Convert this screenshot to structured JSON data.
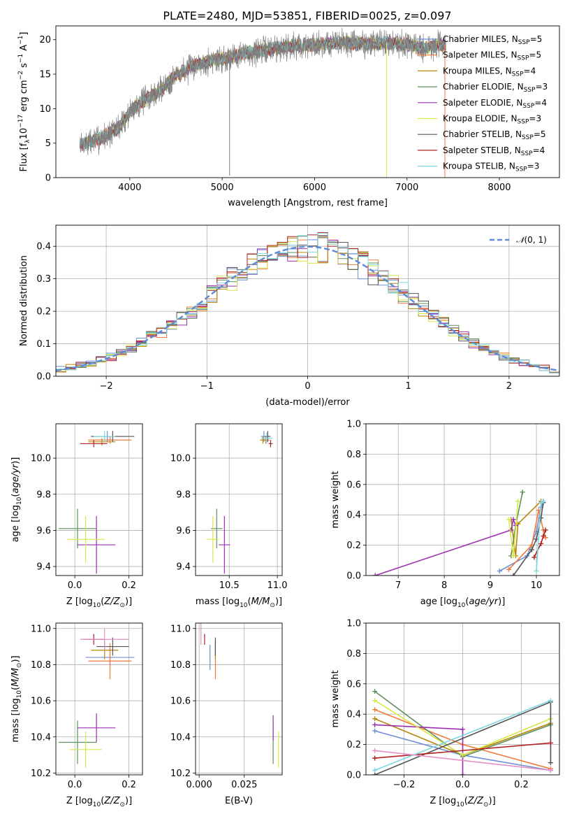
{
  "figure": {
    "title": "PLATE=2480, MJD=53851, FIBERID=0025, z=0.097"
  },
  "legend_models": [
    {
      "text": "Chabrier MILES, N$_{SSP}$=5",
      "prefix": "Chabrier MILES, N",
      "sub": "SSP",
      "suffix": "=5",
      "color": "#6f8fd6"
    },
    {
      "text": "Salpeter MILES, N$_{SSP}$=5",
      "prefix": "Salpeter MILES, N",
      "sub": "SSP",
      "suffix": "=5",
      "color": "#f07a3a"
    },
    {
      "text": "Kroupa MILES, N$_{SSP}$=4",
      "prefix": "Kroupa MILES, N",
      "sub": "SSP",
      "suffix": "=4",
      "color": "#b8860b"
    },
    {
      "text": "Chabrier ELODIE, N$_{SSP}$=3",
      "prefix": "Chabrier ELODIE, N",
      "sub": "SSP",
      "suffix": "=3",
      "color": "#5f8f5f"
    },
    {
      "text": "Salpeter ELODIE, N$_{SSP}$=4",
      "prefix": "Salpeter ELODIE, N",
      "sub": "SSP",
      "suffix": "=4",
      "color": "#9b30b0"
    },
    {
      "text": "Kroupa ELODIE, N$_{SSP}$=3",
      "prefix": "Kroupa ELODIE, N",
      "sub": "SSP",
      "suffix": "=3",
      "color": "#d8e84a"
    },
    {
      "text": "Chabrier STELIB, N$_{SSP}$=5",
      "prefix": "Chabrier STELIB, N",
      "sub": "SSP",
      "suffix": "=5",
      "color": "#555555"
    },
    {
      "text": "Salpeter STELIB, N$_{SSP}$=4",
      "prefix": "Salpeter STELIB, N",
      "sub": "SSP",
      "suffix": "=4",
      "color": "#b22222"
    },
    {
      "text": "Kroupa STELIB, N$_{SSP}$=3",
      "prefix": "Kroupa STELIB, N",
      "sub": "SSP",
      "suffix": "=3",
      "color": "#7fd8e0"
    }
  ],
  "chart_data": [
    {
      "id": "spectrum",
      "type": "line",
      "xlabel": "wavelength [Angstrom, rest frame]",
      "ylabel": "Flux [f$_\\lambda$10$^{-17}$ erg cm$^{-2}$ s$^{-1}$ A$^{-1}$]",
      "ylabel_parts": {
        "a": "Flux [f",
        "b": "λ",
        "c": "10",
        "d": "−17",
        "e": " erg cm",
        "f": "−2",
        "g": " s",
        "h": "−1",
        "i": " A",
        "j": "−1",
        "k": "]"
      },
      "xlim": [
        3200,
        8650
      ],
      "ylim": [
        0,
        22
      ],
      "xticks": [
        4000,
        5000,
        6000,
        7000,
        8000
      ],
      "yticks": [
        0,
        5,
        10,
        15,
        20
      ],
      "grid": false,
      "legend_position": "upper right",
      "data_color": "#808080",
      "x": [
        3460,
        3500,
        3600,
        3700,
        3800,
        3900,
        4000,
        4100,
        4200,
        4300,
        4400,
        4500,
        4600,
        4700,
        4800,
        4900,
        5000,
        5100,
        5200,
        5300,
        5400,
        5500,
        5600,
        5700,
        5800,
        5900,
        6000,
        6100,
        6200,
        6300,
        6400,
        6500,
        6600,
        6700,
        6800,
        6900,
        7000,
        7100,
        7200,
        7300,
        7420
      ],
      "y_model": [
        4.8,
        4.9,
        5.3,
        5.8,
        6.5,
        7.5,
        9.5,
        10.8,
        11.5,
        12.3,
        13.6,
        14.8,
        15.5,
        16.3,
        16.7,
        17.0,
        17.2,
        17.6,
        17.9,
        18.1,
        18.3,
        18.6,
        18.8,
        19.0,
        19.1,
        19.2,
        19.3,
        19.4,
        19.5,
        19.5,
        19.5,
        19.4,
        19.4,
        19.5,
        19.5,
        19.5,
        19.3,
        19.0,
        18.7,
        19.1,
        19.3
      ],
      "features": [
        {
          "x": 5080,
          "y": 0.3
        },
        {
          "x": 6780,
          "y": 0.0
        },
        {
          "x": 7410,
          "y": 0.0
        }
      ]
    },
    {
      "id": "residual-hist",
      "type": "step-histogram",
      "xlabel": "(data-model)/error",
      "ylabel": "Normed distribution",
      "legend_label": "N(0,1)",
      "legend_position": "upper right",
      "xlim": [
        -2.5,
        2.5
      ],
      "ylim": [
        0,
        0.465
      ],
      "xticks": [
        -2,
        -1,
        0,
        1,
        2
      ],
      "yticks": [
        0.0,
        0.1,
        0.2,
        0.3,
        0.4
      ],
      "grid": true,
      "bin_width": 0.1,
      "gaussian_color": "#5b8bd9"
    },
    {
      "id": "age-vs-Z",
      "type": "errorbar",
      "xlabel": "Z [log$_{10}$(Z/Z$_\\odot$)]",
      "ylabel": "age  [log$_{10}$(age/yr)]",
      "xlim": [
        -0.07,
        0.25
      ],
      "ylim": [
        9.35,
        10.19
      ],
      "xticks": [
        0.0,
        0.2
      ],
      "yticks": [
        9.4,
        9.6,
        9.8,
        10.0
      ],
      "grid": true,
      "points": [
        {
          "x": 0.12,
          "y": 10.12,
          "xerr": 0.06,
          "yerr": 0.03,
          "color": "#6f8fd6"
        },
        {
          "x": 0.13,
          "y": 10.1,
          "xerr": 0.08,
          "yerr": 0.02,
          "color": "#f07a3a"
        },
        {
          "x": 0.1,
          "y": 10.09,
          "xerr": 0.05,
          "yerr": 0.02,
          "color": "#b8860b"
        },
        {
          "x": 0.01,
          "y": 9.61,
          "xerr": 0.07,
          "yerr": 0.11,
          "color": "#5f8f5f"
        },
        {
          "x": 0.08,
          "y": 9.52,
          "xerr": 0.07,
          "yerr": 0.16,
          "color": "#9b30b0"
        },
        {
          "x": 0.04,
          "y": 9.55,
          "xerr": 0.07,
          "yerr": 0.13,
          "color": "#d8e84a"
        },
        {
          "x": 0.14,
          "y": 10.12,
          "xerr": 0.08,
          "yerr": 0.03,
          "color": "#555555"
        },
        {
          "x": 0.07,
          "y": 10.08,
          "xerr": 0.05,
          "yerr": 0.02,
          "color": "#b22222"
        },
        {
          "x": 0.11,
          "y": 10.12,
          "xerr": 0.04,
          "yerr": 0.03,
          "color": "#7fd8e0"
        }
      ]
    },
    {
      "id": "age-vs-mass",
      "type": "errorbar",
      "xlabel": "mass [log$_{10}$(M/M$_\\odot$)]",
      "ylabel": "",
      "xlim": [
        10.15,
        11.05
      ],
      "ylim": [
        9.35,
        10.19
      ],
      "xticks": [
        10.5,
        11.0
      ],
      "yticks": [
        9.4,
        9.6,
        9.8,
        10.0
      ],
      "grid": true,
      "points": [
        {
          "x": 10.86,
          "y": 10.12,
          "xerr": 0.03,
          "yerr": 0.03,
          "color": "#6f8fd6"
        },
        {
          "x": 10.88,
          "y": 10.1,
          "xerr": 0.04,
          "yerr": 0.02,
          "color": "#f07a3a"
        },
        {
          "x": 10.85,
          "y": 10.1,
          "xerr": 0.03,
          "yerr": 0.02,
          "color": "#b8860b"
        },
        {
          "x": 10.37,
          "y": 9.61,
          "xerr": 0.06,
          "yerr": 0.11,
          "color": "#5f8f5f"
        },
        {
          "x": 10.45,
          "y": 9.52,
          "xerr": 0.06,
          "yerr": 0.16,
          "color": "#9b30b0"
        },
        {
          "x": 10.33,
          "y": 9.55,
          "xerr": 0.06,
          "yerr": 0.13,
          "color": "#d8e84a"
        },
        {
          "x": 10.9,
          "y": 10.12,
          "xerr": 0.03,
          "yerr": 0.03,
          "color": "#555555"
        },
        {
          "x": 10.93,
          "y": 10.08,
          "xerr": 0.02,
          "yerr": 0.02,
          "color": "#b22222"
        },
        {
          "x": 10.89,
          "y": 10.11,
          "xerr": 0.06,
          "yerr": 0.03,
          "color": "#7fd8e0"
        }
      ]
    },
    {
      "id": "weight-vs-age",
      "type": "line",
      "xlabel": "age  [log$_{10}$(age/yr)]",
      "ylabel": "mass weight",
      "xlim": [
        6.3,
        10.5
      ],
      "ylim": [
        0,
        1
      ],
      "xticks": [
        7,
        8,
        9,
        10
      ],
      "yticks": [
        0.0,
        0.2,
        0.4,
        0.6,
        0.8,
        1.0
      ],
      "grid": true,
      "series": [
        {
          "color": "#6f8fd6",
          "x": [
            9.2,
            9.8,
            10.0,
            10.1,
            10.15
          ],
          "y": [
            0.03,
            0.13,
            0.29,
            0.45,
            0.49
          ]
        },
        {
          "color": "#f07a3a",
          "x": [
            9.4,
            9.9,
            10.05,
            10.15,
            10.2
          ],
          "y": [
            0.04,
            0.2,
            0.43,
            0.3,
            0.25
          ]
        },
        {
          "color": "#b8860b",
          "x": [
            9.45,
            9.55,
            9.6,
            10.1
          ],
          "y": [
            0.37,
            0.13,
            0.34,
            0.49
          ]
        },
        {
          "color": "#5f8f5f",
          "x": [
            9.45,
            9.55,
            9.7
          ],
          "y": [
            0.13,
            0.33,
            0.55
          ]
        },
        {
          "color": "#9b30b0",
          "x": [
            6.5,
            9.45,
            9.5,
            9.55
          ],
          "y": [
            0.0,
            0.3,
            0.37,
            0.33
          ]
        },
        {
          "color": "#d8e84a",
          "x": [
            9.4,
            9.5,
            9.6
          ],
          "y": [
            0.37,
            0.13,
            0.49
          ]
        },
        {
          "color": "#555555",
          "x": [
            9.5,
            9.9,
            10.0,
            10.1,
            10.15
          ],
          "y": [
            0.0,
            0.17,
            0.24,
            0.38,
            0.48
          ]
        },
        {
          "color": "#b22222",
          "x": [
            9.95,
            10.1,
            10.15,
            10.2
          ],
          "y": [
            0.12,
            0.21,
            0.26,
            0.3
          ]
        },
        {
          "color": "#7fd8e0",
          "x": [
            10.0,
            10.1,
            10.15
          ],
          "y": [
            0.03,
            0.48,
            0.49
          ]
        }
      ]
    },
    {
      "id": "mass-vs-Z",
      "type": "errorbar",
      "xlabel": "Z [log$_{10}$(Z/Z$_\\odot$)]",
      "ylabel": "mass [log$_{10}$(M/M$_\\odot$)]",
      "xlim": [
        -0.07,
        0.25
      ],
      "ylim": [
        10.19,
        11.03
      ],
      "xticks": [
        0.0,
        0.2
      ],
      "yticks": [
        10.2,
        10.4,
        10.6,
        10.8,
        11.0
      ],
      "grid": true,
      "points": [
        {
          "x": 0.13,
          "y": 10.84,
          "xerr": 0.09,
          "yerr": 0.05,
          "color": "#6f8fd6"
        },
        {
          "x": 0.13,
          "y": 10.82,
          "xerr": 0.08,
          "yerr": 0.1,
          "color": "#f07a3a"
        },
        {
          "x": 0.11,
          "y": 10.88,
          "xerr": 0.05,
          "yerr": 0.05,
          "color": "#b8860b"
        },
        {
          "x": 0.01,
          "y": 10.37,
          "xerr": 0.07,
          "yerr": 0.12,
          "color": "#5f8f5f"
        },
        {
          "x": 0.08,
          "y": 10.45,
          "xerr": 0.07,
          "yerr": 0.08,
          "color": "#9b30b0"
        },
        {
          "x": 0.04,
          "y": 10.33,
          "xerr": 0.06,
          "yerr": 0.1,
          "color": "#d8e84a"
        },
        {
          "x": 0.14,
          "y": 10.9,
          "xerr": 0.06,
          "yerr": 0.05,
          "color": "#555555"
        },
        {
          "x": 0.07,
          "y": 10.94,
          "xerr": 0.04,
          "yerr": 0.03,
          "color": "#b22222"
        },
        {
          "x": 0.11,
          "y": 10.94,
          "xerr": 0.09,
          "yerr": 0.06,
          "color": "#e58fc6"
        }
      ]
    },
    {
      "id": "mass-vs-ebv",
      "type": "errorbar",
      "xlabel": "E(B-V)",
      "ylabel": "",
      "xlim": [
        -0.002,
        0.046
      ],
      "ylim": [
        10.19,
        11.03
      ],
      "xticks": [
        0.0,
        0.025
      ],
      "yticks": [
        10.2,
        10.4,
        10.6,
        10.8,
        11.0
      ],
      "grid": true,
      "points": [
        {
          "x": 0.006,
          "y": 10.84,
          "xerr": 0,
          "yerr": 0.07,
          "color": "#6f8fd6"
        },
        {
          "x": 0.009,
          "y": 10.82,
          "xerr": 0,
          "yerr": 0.1,
          "color": "#f07a3a"
        },
        {
          "x": 0.009,
          "y": 10.88,
          "xerr": 0,
          "yerr": 0.05,
          "color": "#b8860b"
        },
        {
          "x": 0.041,
          "y": 10.37,
          "xerr": 0,
          "yerr": 0.12,
          "color": "#5f8f5f"
        },
        {
          "x": 0.041,
          "y": 10.45,
          "xerr": 0,
          "yerr": 0.07,
          "color": "#9b30b0"
        },
        {
          "x": 0.044,
          "y": 10.33,
          "xerr": 0,
          "yerr": 0.1,
          "color": "#d8e84a"
        },
        {
          "x": 0.009,
          "y": 10.9,
          "xerr": 0,
          "yerr": 0.05,
          "color": "#555555"
        },
        {
          "x": 0.003,
          "y": 10.94,
          "xerr": 0,
          "yerr": 0.03,
          "color": "#b22222"
        },
        {
          "x": 0.001,
          "y": 10.97,
          "xerr": 0,
          "yerr": 0.06,
          "color": "#e58fc6"
        }
      ]
    },
    {
      "id": "weight-vs-Z",
      "type": "line",
      "xlabel": "Z [log$_{10}$(Z/Z$_\\odot$)]",
      "ylabel": "mass weight",
      "xlim": [
        -0.33,
        0.33
      ],
      "ylim": [
        0,
        1
      ],
      "xticks": [
        -0.2,
        0.0,
        0.2
      ],
      "yticks": [
        0.0,
        0.2,
        0.4,
        0.6,
        0.8,
        1.0
      ],
      "grid": true,
      "series": [
        {
          "color": "#6f8fd6",
          "x": [
            -0.3,
            0.0,
            0.3
          ],
          "y": [
            0.29,
            0.13,
            0.03
          ]
        },
        {
          "color": "#f07a3a",
          "x": [
            -0.3,
            0.0,
            0.3
          ],
          "y": [
            0.43,
            0.2,
            0.04
          ]
        },
        {
          "color": "#b8860b",
          "x": [
            -0.3,
            0.0,
            0.3
          ],
          "y": [
            0.37,
            0.13,
            0.34
          ]
        },
        {
          "color": "#5f8f5f",
          "x": [
            -0.3,
            0.0,
            0.3
          ],
          "y": [
            0.55,
            0.12,
            0.33
          ]
        },
        {
          "color": "#9b30b0",
          "x": [
            -0.3,
            0.0,
            0.0
          ],
          "y": [
            0.33,
            0.3,
            0.0
          ]
        },
        {
          "color": "#d8e84a",
          "x": [
            -0.3,
            0.0,
            0.3
          ],
          "y": [
            0.49,
            0.13,
            0.37
          ]
        },
        {
          "color": "#555555",
          "x": [
            -0.3,
            0.3,
            0.3
          ],
          "y": [
            0.0,
            0.48,
            0.08
          ]
        },
        {
          "color": "#b22222",
          "x": [
            -0.3,
            0.3
          ],
          "y": [
            0.11,
            0.21
          ]
        },
        {
          "color": "#7fd8e0",
          "x": [
            -0.3,
            0.3
          ],
          "y": [
            0.03,
            0.49
          ]
        },
        {
          "color": "#e58fc6",
          "x": [
            -0.3,
            0.3
          ],
          "y": [
            0.16,
            0.03
          ]
        }
      ]
    }
  ]
}
